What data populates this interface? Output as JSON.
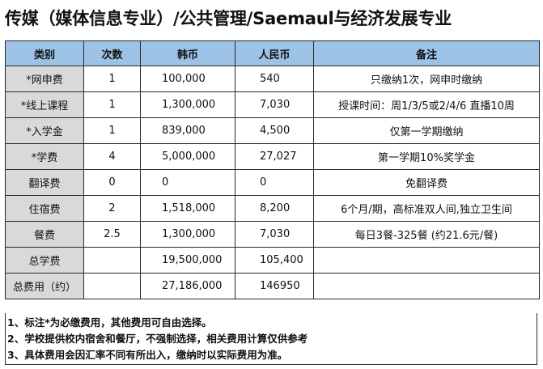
{
  "title": "传媒（媒体信息专业）/公共管理/Saemaul与经济发展专业",
  "headers": [
    "类别",
    "次数",
    "韩币",
    "人民币",
    "备注"
  ],
  "rows": [
    {
      "category": "*网申费",
      "times": "1",
      "krw": "100,000",
      "rmb": "540",
      "note": "只缴纳1次，网申时缴纳"
    },
    {
      "category": "*线上课程",
      "times": "1",
      "krw": "1,300,000",
      "rmb": "7,030",
      "note": "授课时间：周1/3/5或2/4/6 直播10周"
    },
    {
      "category": "*入学金",
      "times": "1",
      "krw": "839,000",
      "rmb": "4,500",
      "note": "仅第一学期缴纳"
    },
    {
      "category": "*学费",
      "times": "4",
      "krw": "5,000,000",
      "rmb": "27,027",
      "note": "第一学期10%奖学金"
    },
    {
      "category": "翻译费",
      "times": "0",
      "krw": "0",
      "rmb": "0",
      "note": "免翻译费"
    },
    {
      "category": "住宿费",
      "times": "2",
      "krw": "1,518,000",
      "rmb": "8,200",
      "note": "6个月/期，高标准双人间,独立卫生间"
    },
    {
      "category": "餐费",
      "times": "2.5",
      "krw": "1,300,000",
      "rmb": "7,030",
      "note": "每日3餐-325餐 (约21.6元/餐)"
    },
    {
      "category": "总学费",
      "times": "",
      "krw": "19,500,000",
      "rmb": "105,400",
      "note": ""
    },
    {
      "category": "总费用（约）",
      "times": "",
      "krw": "27,186,000",
      "rmb": "146950",
      "note": ""
    }
  ],
  "notes": [
    "1、标注*为必缴费用，其他费用可自由选择。",
    "2、学校提供校内宿舍和餐厅，不强制选择，相关费用计算仅供参考",
    "3、具体费用会因汇率不同有所出入，缴纳时以实际费用为准。"
  ]
}
